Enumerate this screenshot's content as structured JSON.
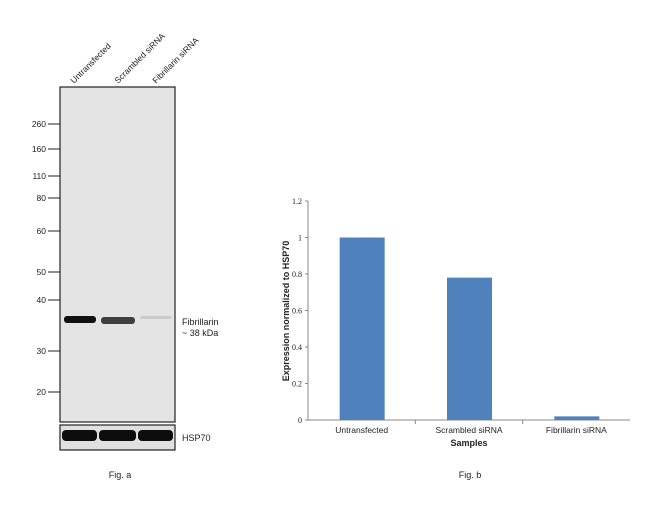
{
  "blot": {
    "lanes": [
      "Untransfected",
      "Scrambled siRNA",
      "Fibrillarin siRNA"
    ],
    "markers": [
      "260",
      "160",
      "110",
      "80",
      "60",
      "50",
      "40",
      "30",
      "20"
    ],
    "band_label": "Fibrillarin",
    "band_size": "~ 38 kDa",
    "loading_control": "HSP70",
    "caption": "Fig. a",
    "band_intensity": [
      1.0,
      0.78,
      0.02
    ]
  },
  "chart_data": {
    "type": "bar",
    "categories": [
      "Untransfected",
      "Scrambled siRNA",
      "Fibrillarin siRNA"
    ],
    "values": [
      1.0,
      0.78,
      0.02
    ],
    "xlabel": "Samples",
    "ylabel": "Expression normalized to HSP70",
    "ylim": [
      0,
      1.2
    ],
    "yticks": [
      "0",
      "0.2",
      "0.4",
      "0.6",
      "0.8",
      "1",
      "1.2"
    ],
    "grid": false,
    "bar_color": "#4f81bd",
    "caption": "Fig. b"
  }
}
